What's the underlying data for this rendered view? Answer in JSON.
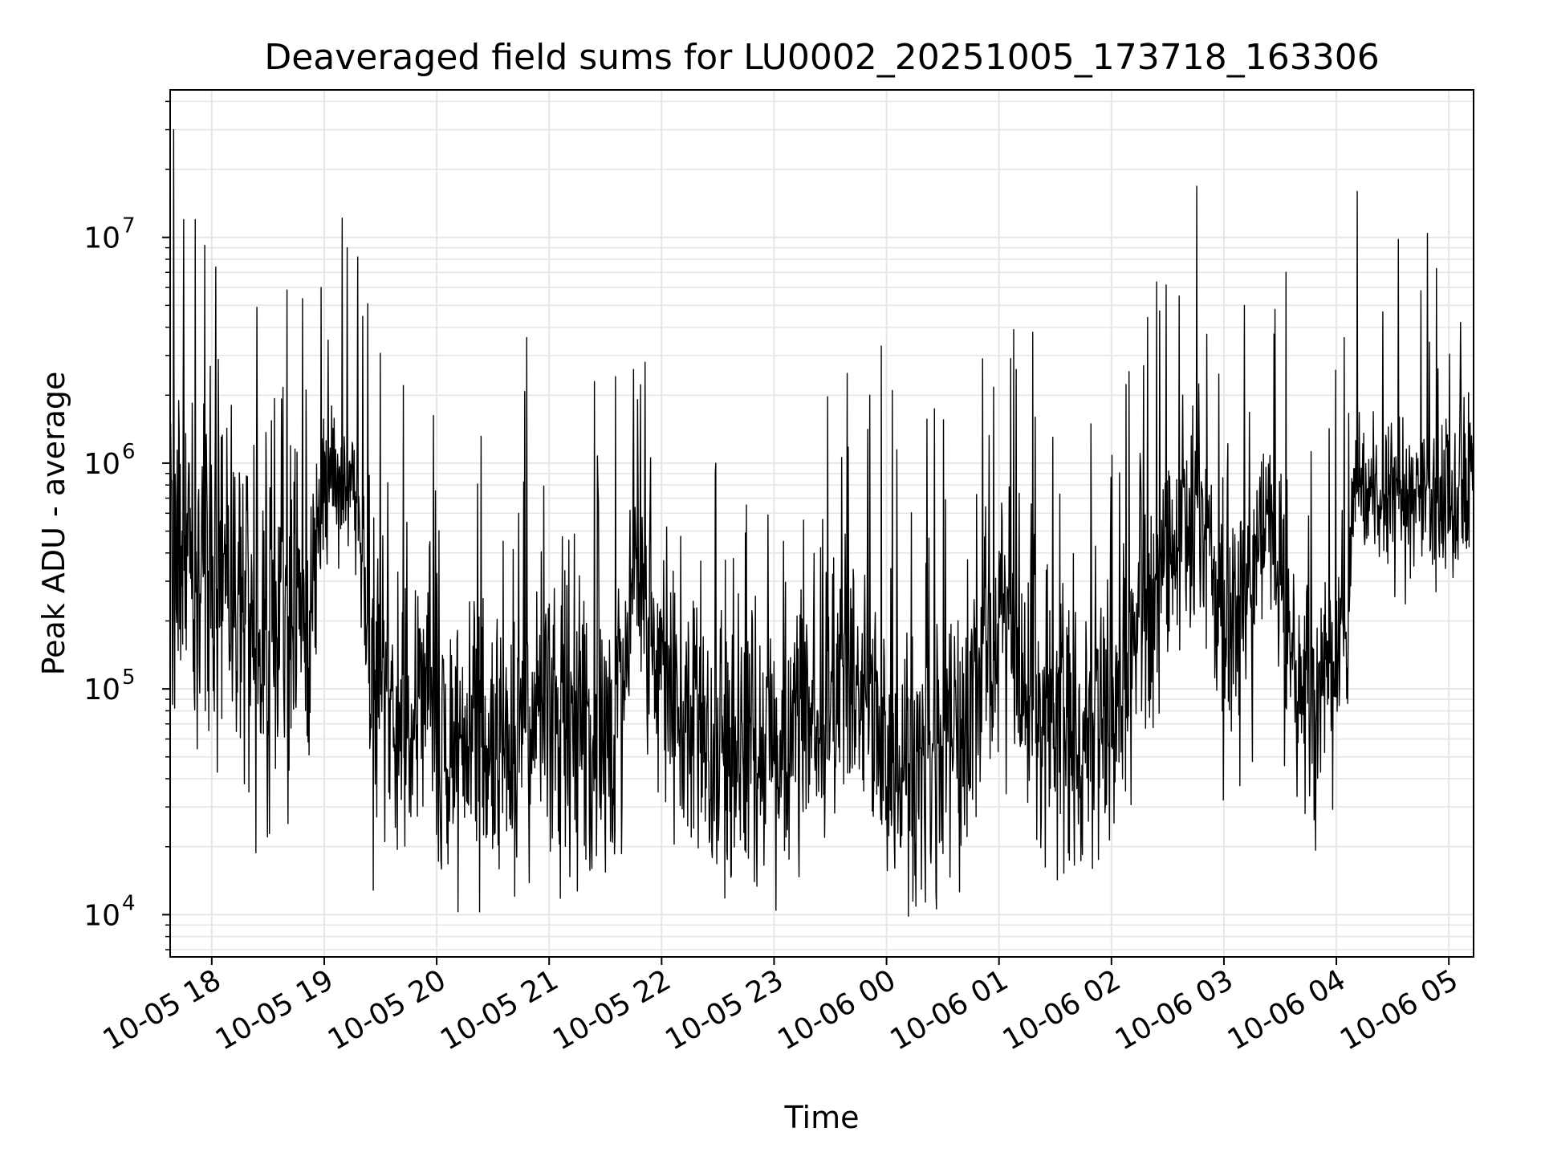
{
  "chart_data": {
    "type": "line",
    "title": "Deaveraged field sums for LU0002_20251005_173718_163306",
    "xlabel": "Time",
    "ylabel": "Peak ADU - average",
    "yscale": "log",
    "ylim": [
      6500,
      45000000
    ],
    "xlim_hours": [
      17.63,
      29.22
    ],
    "grid": true,
    "legend": "none",
    "line_color": "#000000",
    "grid_color": "#e6e6e6",
    "x_ticks": [
      {
        "label": "10-05 18",
        "hour": 18
      },
      {
        "label": "10-05 19",
        "hour": 19
      },
      {
        "label": "10-05 20",
        "hour": 20
      },
      {
        "label": "10-05 21",
        "hour": 21
      },
      {
        "label": "10-05 22",
        "hour": 22
      },
      {
        "label": "10-05 23",
        "hour": 23
      },
      {
        "label": "10-06 00",
        "hour": 24
      },
      {
        "label": "10-06 01",
        "hour": 25
      },
      {
        "label": "10-06 02",
        "hour": 26
      },
      {
        "label": "10-06 03",
        "hour": 27
      },
      {
        "label": "10-06 04",
        "hour": 28
      },
      {
        "label": "10-06 05",
        "hour": 29
      }
    ],
    "y_ticks": [
      {
        "base": "10",
        "exp": "4",
        "value": 10000
      },
      {
        "base": "10",
        "exp": "5",
        "value": 100000
      },
      {
        "base": "10",
        "exp": "6",
        "value": 1000000
      },
      {
        "base": "10",
        "exp": "7",
        "value": 10000000
      }
    ],
    "series_profile": [
      {
        "hour": 17.63,
        "center": 400000,
        "spread": 0.8
      },
      {
        "hour": 17.85,
        "center": 350000,
        "spread": 0.7
      },
      {
        "hour": 18.1,
        "center": 250000,
        "spread": 0.7
      },
      {
        "hour": 18.5,
        "center": 220000,
        "spread": 0.75
      },
      {
        "hour": 18.85,
        "center": 200000,
        "spread": 0.6
      },
      {
        "hour": 19.0,
        "center": 750000,
        "spread": 0.3
      },
      {
        "hour": 19.3,
        "center": 700000,
        "spread": 0.3
      },
      {
        "hour": 19.4,
        "center": 130000,
        "spread": 0.6
      },
      {
        "hour": 20.0,
        "center": 70000,
        "spread": 0.6
      },
      {
        "hour": 20.4,
        "center": 45000,
        "spread": 0.55
      },
      {
        "hour": 20.8,
        "center": 80000,
        "spread": 0.6
      },
      {
        "hour": 21.5,
        "center": 60000,
        "spread": 0.6
      },
      {
        "hour": 21.7,
        "center": 120000,
        "spread": 0.5
      },
      {
        "hour": 21.75,
        "center": 500000,
        "spread": 0.5
      },
      {
        "hour": 21.9,
        "center": 150000,
        "spread": 0.55
      },
      {
        "hour": 22.5,
        "center": 50000,
        "spread": 0.6
      },
      {
        "hour": 23.2,
        "center": 60000,
        "spread": 0.6
      },
      {
        "hour": 23.7,
        "center": 120000,
        "spread": 0.55
      },
      {
        "hour": 24.1,
        "center": 40000,
        "spread": 0.6
      },
      {
        "hour": 24.8,
        "center": 80000,
        "spread": 0.6
      },
      {
        "hour": 25.0,
        "center": 180000,
        "spread": 0.5
      },
      {
        "hour": 25.4,
        "center": 60000,
        "spread": 0.65
      },
      {
        "hour": 26.0,
        "center": 70000,
        "spread": 0.6
      },
      {
        "hour": 26.4,
        "center": 300000,
        "spread": 0.55
      },
      {
        "hour": 26.8,
        "center": 700000,
        "spread": 0.4
      },
      {
        "hour": 27.0,
        "center": 150000,
        "spread": 0.5
      },
      {
        "hour": 27.2,
        "center": 300000,
        "spread": 0.5
      },
      {
        "hour": 27.4,
        "center": 600000,
        "spread": 0.4
      },
      {
        "hour": 27.55,
        "center": 150000,
        "spread": 0.5
      },
      {
        "hour": 27.8,
        "center": 100000,
        "spread": 0.5
      },
      {
        "hour": 28.1,
        "center": 150000,
        "spread": 0.4
      },
      {
        "hour": 28.15,
        "center": 850000,
        "spread": 0.25
      },
      {
        "hour": 28.6,
        "center": 750000,
        "spread": 0.35
      },
      {
        "hour": 28.9,
        "center": 600000,
        "spread": 0.35
      },
      {
        "hour": 29.22,
        "center": 900000,
        "spread": 0.35
      }
    ],
    "notable_peaks": [
      {
        "hour": 17.66,
        "value": 30000000
      },
      {
        "hour": 17.75,
        "value": 12000000
      },
      {
        "hour": 17.85,
        "value": 12000000
      },
      {
        "hour": 18.4,
        "value": 4900000
      },
      {
        "hour": 18.97,
        "value": 6000000
      },
      {
        "hour": 19.2,
        "value": 9000000
      },
      {
        "hour": 20.8,
        "value": 3600000
      },
      {
        "hour": 21.4,
        "value": 2300000
      },
      {
        "hour": 21.75,
        "value": 2600000
      },
      {
        "hour": 21.85,
        "value": 2800000
      },
      {
        "hour": 23.65,
        "value": 2500000
      },
      {
        "hour": 23.95,
        "value": 3300000
      },
      {
        "hour": 24.05,
        "value": 2100000
      },
      {
        "hour": 24.85,
        "value": 2900000
      },
      {
        "hour": 25.15,
        "value": 2600000
      },
      {
        "hour": 25.3,
        "value": 3800000
      },
      {
        "hour": 26.6,
        "value": 5500000
      },
      {
        "hour": 27.18,
        "value": 5000000
      },
      {
        "hour": 27.45,
        "value": 4800000
      },
      {
        "hour": 27.55,
        "value": 7000000
      },
      {
        "hour": 28.55,
        "value": 9800000
      },
      {
        "hour": 28.75,
        "value": 5800000
      },
      {
        "hour": 29.1,
        "value": 4200000
      }
    ]
  }
}
